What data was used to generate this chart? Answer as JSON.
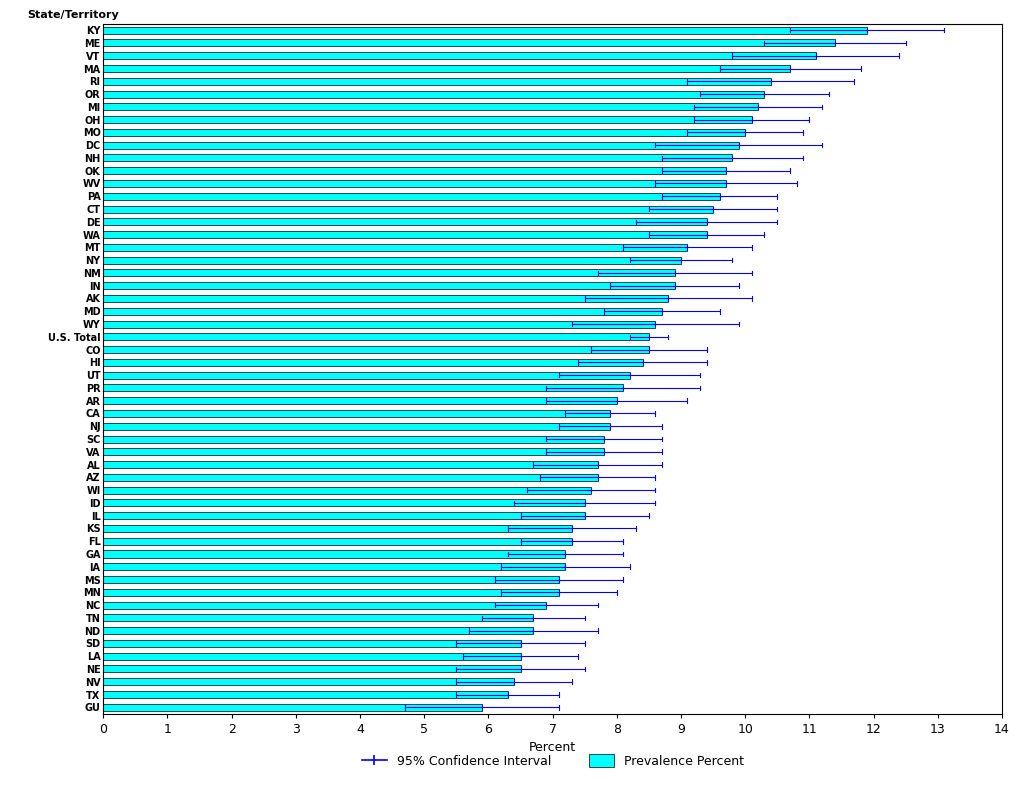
{
  "xlabel": "Percent",
  "ylabel": "State/Territory",
  "xlim": [
    0,
    14
  ],
  "xticks": [
    0,
    1,
    2,
    3,
    4,
    5,
    6,
    7,
    8,
    9,
    10,
    11,
    12,
    13,
    14
  ],
  "bar_color": "#00FFFF",
  "ci_color": "#0000FF",
  "bar_edge_color": "#000000",
  "states": [
    "KY",
    "ME",
    "VT",
    "MA",
    "RI",
    "OR",
    "MI",
    "OH",
    "MO",
    "DC",
    "NH",
    "OK",
    "WV",
    "PA",
    "CT",
    "DE",
    "WA",
    "MT",
    "NY",
    "NM",
    "IN",
    "AK",
    "MD",
    "WY",
    "U.S. Total",
    "CO",
    "HI",
    "UT",
    "PR",
    "AR",
    "CA",
    "NJ",
    "SC",
    "VA",
    "AL",
    "AZ",
    "WI",
    "ID",
    "IL",
    "KS",
    "FL",
    "GA",
    "IA",
    "MS",
    "MN",
    "NC",
    "TN",
    "ND",
    "SD",
    "LA",
    "NE",
    "NV",
    "TX",
    "GU"
  ],
  "prevalence": [
    11.9,
    11.4,
    11.1,
    10.7,
    10.4,
    10.3,
    10.2,
    10.1,
    10.0,
    9.9,
    9.8,
    9.7,
    9.7,
    9.6,
    9.5,
    9.4,
    9.4,
    9.1,
    9.0,
    8.9,
    8.9,
    8.8,
    8.7,
    8.6,
    8.5,
    8.5,
    8.4,
    8.2,
    8.1,
    8.0,
    7.9,
    7.9,
    7.8,
    7.8,
    7.7,
    7.7,
    7.6,
    7.5,
    7.5,
    7.3,
    7.3,
    7.2,
    7.2,
    7.1,
    7.1,
    6.9,
    6.7,
    6.7,
    6.5,
    6.5,
    6.5,
    6.4,
    6.3,
    5.9
  ],
  "ci_low": [
    10.7,
    10.3,
    9.8,
    9.6,
    9.1,
    9.3,
    9.2,
    9.2,
    9.1,
    8.6,
    8.7,
    8.7,
    8.6,
    8.7,
    8.5,
    8.3,
    8.5,
    8.1,
    8.2,
    7.7,
    7.9,
    7.5,
    7.8,
    7.3,
    8.2,
    7.6,
    7.4,
    7.1,
    6.9,
    6.9,
    7.2,
    7.1,
    6.9,
    6.9,
    6.7,
    6.8,
    6.6,
    6.4,
    6.5,
    6.3,
    6.5,
    6.3,
    6.2,
    6.1,
    6.2,
    6.1,
    5.9,
    5.7,
    5.5,
    5.6,
    5.5,
    5.5,
    5.5,
    4.7
  ],
  "ci_high": [
    13.1,
    12.5,
    12.4,
    11.8,
    11.7,
    11.3,
    11.2,
    11.0,
    10.9,
    11.2,
    10.9,
    10.7,
    10.8,
    10.5,
    10.5,
    10.5,
    10.3,
    10.1,
    9.8,
    10.1,
    9.9,
    10.1,
    9.6,
    9.9,
    8.8,
    9.4,
    9.4,
    9.3,
    9.3,
    9.1,
    8.6,
    8.7,
    8.7,
    8.7,
    8.7,
    8.6,
    8.6,
    8.6,
    8.5,
    8.3,
    8.1,
    8.1,
    8.2,
    8.1,
    8.0,
    7.7,
    7.5,
    7.7,
    7.5,
    7.4,
    7.5,
    7.3,
    7.1,
    7.1
  ]
}
